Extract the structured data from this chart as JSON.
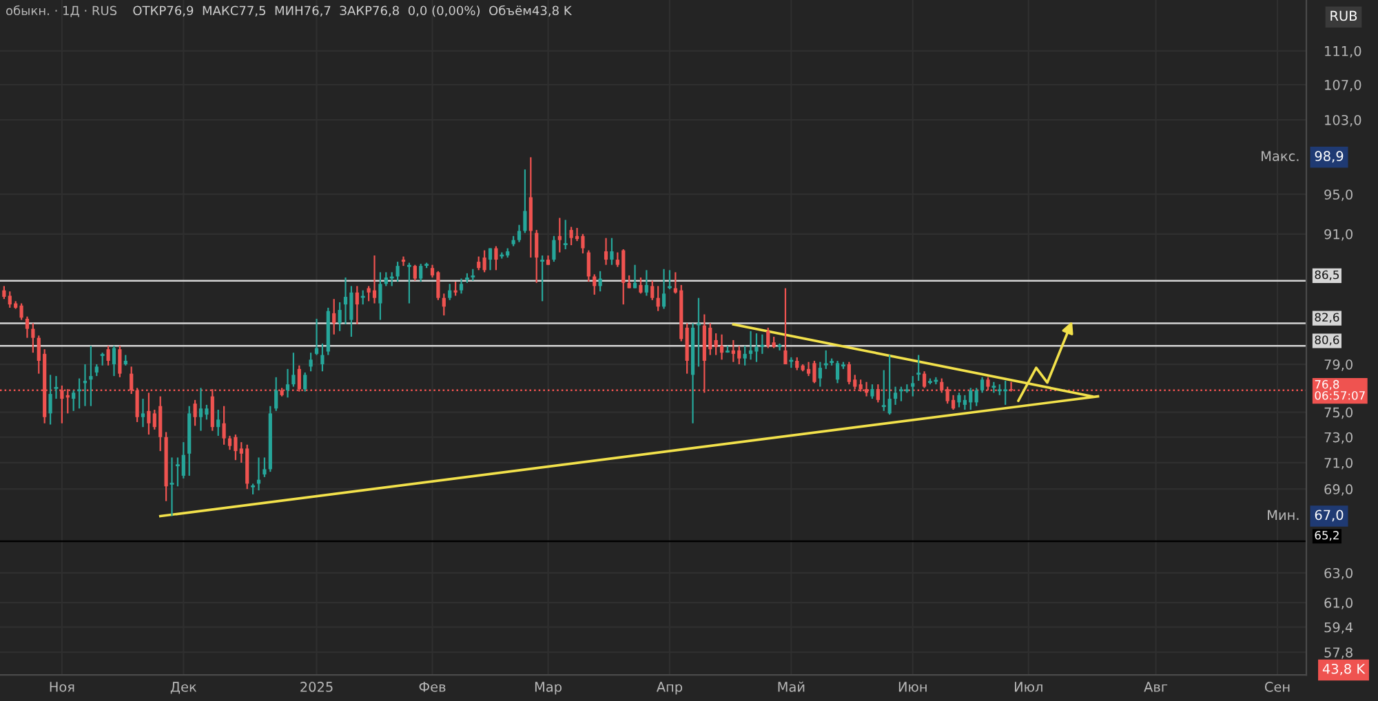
{
  "chart_data": {
    "type": "candlestick",
    "title": "обыкн. · 1Д · RUS",
    "subtitle": "ОТКР76,9  МАКС77,5  МИН76,7  ЗАКР76,8  0,0 (0,00%)  Объём43,8 K",
    "categories": [
      null,
      null,
      null,
      null,
      null,
      null,
      null,
      null,
      null,
      null,
      "Ноя",
      null,
      null,
      null,
      null,
      null,
      null,
      null,
      null,
      null,
      null,
      null,
      null,
      null,
      null,
      null,
      null,
      null,
      null,
      null,
      null,
      "Дек",
      null,
      null,
      null,
      null,
      null,
      null,
      null,
      null,
      null,
      null,
      null,
      null,
      null,
      null,
      null,
      null,
      null,
      null,
      null,
      null,
      null,
      null,
      "2025",
      null,
      null,
      null,
      null,
      null,
      null,
      null,
      null,
      null,
      null,
      null,
      null,
      null,
      null,
      null,
      null,
      null,
      null,
      null,
      "Фев",
      null,
      null,
      null,
      null,
      null,
      null,
      null,
      null,
      null,
      null,
      null,
      null,
      null,
      null,
      null,
      null,
      null,
      null,
      null,
      "Мар",
      null,
      null,
      null,
      null,
      null,
      null,
      null,
      null,
      null,
      null,
      null,
      null,
      null,
      null,
      null,
      null,
      null,
      null,
      null,
      null,
      "Апр",
      null,
      null,
      null,
      null,
      null,
      null,
      null,
      null,
      null,
      null,
      null,
      null,
      null,
      null,
      null,
      null,
      null,
      null,
      null,
      null,
      "Май",
      null,
      null,
      null,
      null,
      null,
      null,
      null,
      null,
      null,
      null,
      null,
      null,
      null,
      null,
      null,
      null,
      null,
      null,
      null,
      null,
      "Июн",
      null,
      null,
      null,
      null,
      null,
      null,
      null,
      null,
      null,
      null,
      null,
      null,
      null,
      null,
      null,
      null,
      null,
      null,
      null,
      "Июл",
      null,
      null,
      null,
      null,
      null,
      null,
      null,
      null,
      null,
      null,
      null,
      null,
      null,
      null,
      null,
      null,
      null,
      null,
      null,
      null,
      null,
      "Авг",
      null,
      null,
      null,
      null,
      null,
      null,
      null,
      null,
      null,
      null,
      null,
      null,
      null,
      null,
      null,
      null,
      null,
      null,
      null,
      null,
      "Сен",
      null,
      null,
      null,
      null,
      null
    ],
    "series": [
      {
        "type": "line",
        "color": "#f2e14b",
        "values": [
          null,
          null,
          null,
          null,
          null,
          null,
          null,
          null,
          null,
          null,
          null,
          null,
          null,
          null,
          null,
          null,
          null,
          null,
          null,
          null,
          null,
          null,
          null,
          null,
          null,
          null,
          null,
          67.0,
          null,
          null,
          null,
          null,
          null,
          null,
          null,
          null,
          null,
          null,
          null,
          null,
          null,
          null,
          null,
          null,
          null,
          null,
          null,
          null,
          null,
          null,
          null,
          null,
          null,
          null,
          null,
          null,
          null,
          null,
          null,
          null,
          null,
          null,
          null,
          null,
          null,
          null,
          null,
          null,
          null,
          null,
          null,
          null,
          null,
          null,
          null,
          null,
          null,
          null,
          null,
          null,
          null,
          null,
          null,
          null,
          null,
          null,
          null,
          null,
          null,
          null,
          null,
          null,
          null,
          null,
          null,
          null,
          null,
          null,
          null,
          null,
          null,
          null,
          null,
          null,
          null,
          null,
          null,
          null,
          null,
          null,
          null,
          null,
          null,
          null,
          null,
          null,
          null,
          null,
          null,
          null,
          null,
          null,
          null,
          null,
          null,
          null,
          null,
          null,
          null,
          null,
          null,
          null,
          null,
          null,
          null,
          null,
          null,
          null,
          null,
          null,
          null,
          null,
          null,
          null,
          null,
          null,
          null,
          null,
          null,
          null,
          null,
          null,
          null,
          null,
          null,
          null,
          null,
          null,
          null,
          null,
          null,
          null,
          null,
          null,
          null,
          null,
          null,
          null,
          null,
          null,
          null,
          null,
          null,
          null,
          null,
          null,
          null,
          null,
          null,
          null,
          null,
          null,
          null,
          null,
          null,
          null,
          null,
          null,
          null,
          76.3,
          null,
          null,
          null,
          null,
          null,
          null,
          null,
          null,
          null,
          null,
          null,
          null,
          null,
          null,
          null,
          null,
          null,
          null,
          null,
          null,
          null,
          null,
          null,
          null,
          null,
          null,
          null,
          null,
          null,
          null,
          null,
          null,
          null,
          null,
          null,
          null
        ]
      },
      {
        "type": "line",
        "color": "#f2e14b",
        "values": [
          null,
          null,
          null,
          null,
          null,
          null,
          null,
          null,
          null,
          null,
          null,
          null,
          null,
          null,
          null,
          null,
          null,
          null,
          null,
          null,
          null,
          null,
          null,
          null,
          null,
          null,
          null,
          null,
          null,
          null,
          null,
          null,
          null,
          null,
          null,
          null,
          null,
          null,
          null,
          null,
          null,
          null,
          null,
          null,
          null,
          null,
          null,
          null,
          null,
          null,
          null,
          null,
          null,
          null,
          null,
          null,
          null,
          null,
          null,
          null,
          null,
          null,
          null,
          null,
          null,
          null,
          null,
          null,
          null,
          null,
          null,
          null,
          null,
          null,
          null,
          null,
          null,
          null,
          null,
          null,
          null,
          null,
          null,
          null,
          null,
          null,
          null,
          null,
          null,
          null,
          null,
          null,
          null,
          null,
          null,
          null,
          null,
          null,
          null,
          null,
          null,
          null,
          null,
          null,
          null,
          null,
          null,
          null,
          null,
          null,
          null,
          null,
          null,
          null,
          null,
          null,
          null,
          null,
          null,
          null,
          null,
          null,
          null,
          null,
          null,
          null,
          82.5,
          null,
          null,
          null,
          null,
          null,
          null,
          null,
          null,
          null,
          null,
          null,
          null,
          null,
          null,
          null,
          null,
          null,
          null,
          null,
          null,
          null,
          null,
          null,
          null,
          null,
          null,
          null,
          null,
          null,
          null,
          null,
          null,
          null,
          null,
          null,
          null,
          null,
          null,
          null,
          null,
          null,
          null,
          null,
          null,
          null,
          null,
          null,
          null,
          null,
          null,
          null,
          null,
          null,
          null,
          null,
          null,
          null,
          null,
          null,
          null,
          null,
          76.3,
          null,
          null,
          null,
          null,
          null,
          null,
          null,
          null,
          null,
          null,
          null,
          null,
          null,
          null,
          null,
          null,
          null,
          null,
          null,
          null,
          null,
          null,
          null,
          null,
          null,
          null,
          null,
          null,
          null,
          null,
          null,
          null,
          null,
          null,
          null,
          null,
          null
        ]
      },
      {
        "colors": [
          "#ef5350",
          "#ef5350",
          "#ef5350",
          "#ef5350",
          "#ef5350",
          "#ef5350",
          "#ef5350",
          "#ef5350",
          "#26a69a",
          "#26a69a",
          "#ef5350",
          "#ef5350",
          "#26a69a",
          "#26a69a",
          "#26a69a",
          "#26a69a",
          "#26a69a",
          "#26a69a",
          "#ef5350",
          "#26a69a",
          "#ef5350",
          "#26a69a",
          "#ef5350",
          "#ef5350",
          "#26a69a",
          "#ef5350",
          "#ef5350",
          "#ef5350",
          "#ef5350",
          "#26a69a",
          "#26a69a",
          "#26a69a",
          "#26a69a",
          "#ef5350",
          "#26a69a",
          "#26a69a",
          "#ef5350",
          "#26a69a",
          "#ef5350",
          "#ef5350",
          "#ef5350",
          "#ef5350",
          "#ef5350",
          "#26a69a",
          "#26a69a",
          "#26a69a",
          "#26a69a",
          "#26a69a",
          "#ef5350",
          "#26a69a",
          "#26a69a",
          "#ef5350",
          "#26a69a",
          "#26a69a",
          "#26a69a",
          "#26a69a",
          "#26a69a",
          "#ef5350",
          "#26a69a",
          "#26a69a",
          "#26a69a",
          "#ef5350",
          "#26a69a",
          "#ef5350",
          "#ef5350",
          "#26a69a",
          "#26a69a",
          "#26a69a",
          "#26a69a",
          "#ef5350",
          "#26a69a",
          "#ef5350",
          "#26a69a",
          "#26a69a",
          "#ef5350",
          "#ef5350",
          "#ef5350",
          "#26a69a",
          "#ef5350",
          "#26a69a",
          "#26a69a",
          "#26a69a",
          "#ef5350",
          "#ef5350",
          "#26a69a",
          "#ef5350",
          "#26a69a",
          "#26a69a",
          "#26a69a",
          "#26a69a",
          "#26a69a",
          "#ef5350",
          "#ef5350",
          "#26a69a",
          "#ef5350",
          "#26a69a",
          "#ef5350",
          "#26a69a",
          "#ef5350",
          "#ef5350",
          "#ef5350",
          "#ef5350",
          "#ef5350",
          "#26a69a",
          "#ef5350",
          "#26a69a",
          "#ef5350",
          "#ef5350",
          "#ef5350",
          "#26a69a",
          "#ef5350",
          "#26a69a",
          "#ef5350",
          "#ef5350",
          "#26a69a",
          "#26a69a",
          "#ef5350",
          "#ef5350",
          "#ef5350",
          "#26a69a",
          "#26a69a",
          "#ef5350",
          "#ef5350",
          "#ef5350",
          "#ef5350",
          "#26a69a",
          "#ef5350",
          "#ef5350",
          "#26a69a",
          "#26a69a",
          "#26a69a",
          "#26a69a",
          "#ef5350",
          "#ef5350",
          "#26a69a",
          "#ef5350",
          "#26a69a",
          "#ef5350",
          "#ef5350",
          "#ef5350",
          "#ef5350",
          "#26a69a",
          "#26a69a",
          "#26a69a",
          "#26a69a",
          "#26a69a",
          "#ef5350",
          "#ef5350",
          "#ef5350",
          "#ef5350",
          "#26a69a",
          "#ef5350",
          "#26a69a",
          "#26a69a",
          "#26a69a",
          "#26a69a",
          "#26a69a",
          "#26a69a",
          "#26a69a",
          "#ef5350",
          "#26a69a",
          "#26a69a",
          "#ef5350",
          "#ef5350",
          "#ef5350",
          "#26a69a",
          "#26a69a",
          "#26a69a",
          "#26a69a",
          "#26a69a",
          "#ef5350",
          "#26a69a",
          "#26a69a",
          "#26a69a",
          "#ef5350",
          null,
          null,
          null,
          null,
          null,
          null,
          null,
          null,
          null,
          null,
          null,
          null,
          null,
          null,
          null,
          null,
          null,
          null,
          null,
          null,
          null,
          null,
          null,
          null,
          null,
          null,
          null,
          null,
          null,
          null,
          null,
          null,
          null,
          null,
          null,
          null,
          null,
          null,
          null,
          null,
          null,
          null,
          null,
          null,
          null,
          null,
          null,
          null,
          null,
          null,
          null
        ],
        "ohlc": [
          [
            85.6,
            86.0,
            84.8,
            85.0
          ],
          [
            85.1,
            85.5,
            84.0,
            84.3
          ],
          [
            84.4,
            84.6,
            83.9,
            84.0
          ],
          [
            84.2,
            84.4,
            82.9,
            83.1
          ],
          [
            83.0,
            83.2,
            81.3,
            82.1
          ],
          [
            82.1,
            82.6,
            80.0,
            81.3
          ],
          [
            81.3,
            81.5,
            78.2,
            79.3
          ],
          [
            79.9,
            80.3,
            74.1,
            74.6
          ],
          [
            74.9,
            78.1,
            74.0,
            76.5
          ],
          [
            77.0,
            78.0,
            76.1,
            77.0
          ],
          [
            76.8,
            77.2,
            74.1,
            76.1
          ],
          [
            76.4,
            76.9,
            74.9,
            76.2
          ],
          [
            76.1,
            76.8,
            75.1,
            76.6
          ],
          [
            76.8,
            77.8,
            75.3,
            76.8
          ],
          [
            77.4,
            79.0,
            75.5,
            77.6
          ],
          [
            77.7,
            80.6,
            75.5,
            78.0
          ],
          [
            78.3,
            79.0,
            78.0,
            78.8
          ],
          [
            79.8,
            80.0,
            78.9,
            79.8
          ],
          [
            80.3,
            80.6,
            78.9,
            79.3
          ],
          [
            79.0,
            80.6,
            78.0,
            80.4
          ],
          [
            80.3,
            80.6,
            77.9,
            78.2
          ],
          [
            79.0,
            79.8,
            78.9,
            79.3
          ],
          [
            78.2,
            78.8,
            76.5,
            76.8
          ],
          [
            76.8,
            77.0,
            74.2,
            74.6
          ],
          [
            74.6,
            76.1,
            73.8,
            74.9
          ],
          [
            75.1,
            76.6,
            73.2,
            74.1
          ],
          [
            74.9,
            75.2,
            73.6,
            73.8
          ],
          [
            75.5,
            76.3,
            71.9,
            73.0
          ],
          [
            73.0,
            73.4,
            68.1,
            69.2
          ],
          [
            69.4,
            71.4,
            67.0,
            69.4
          ],
          [
            70.8,
            71.4,
            69.2,
            70.8
          ],
          [
            70.0,
            72.6,
            69.8,
            71.6
          ],
          [
            71.7,
            75.5,
            70.0,
            74.9
          ],
          [
            75.7,
            76.0,
            73.9,
            74.6
          ],
          [
            74.6,
            77.0,
            73.5,
            75.3
          ],
          [
            74.8,
            75.6,
            74.4,
            75.3
          ],
          [
            76.3,
            76.9,
            73.5,
            73.8
          ],
          [
            73.8,
            75.2,
            73.1,
            74.4
          ],
          [
            74.1,
            75.5,
            72.4,
            72.9
          ],
          [
            72.9,
            73.1,
            72.0,
            72.3
          ],
          [
            73.0,
            73.2,
            71.2,
            71.9
          ],
          [
            72.1,
            72.6,
            71.0,
            71.7
          ],
          [
            72.1,
            72.4,
            69.0,
            69.4
          ],
          [
            69.2,
            69.4,
            68.6,
            69.2
          ],
          [
            69.4,
            71.4,
            68.9,
            69.7
          ],
          [
            70.1,
            71.4,
            69.9,
            70.5
          ],
          [
            70.5,
            75.5,
            70.3,
            74.9
          ],
          [
            75.3,
            77.9,
            75.1,
            76.8
          ],
          [
            76.8,
            77.0,
            76.3,
            76.4
          ],
          [
            76.8,
            78.6,
            76.2,
            77.3
          ],
          [
            77.3,
            80.0,
            77.1,
            78.1
          ],
          [
            78.6,
            78.9,
            76.7,
            76.9
          ],
          [
            76.9,
            78.3,
            76.7,
            78.1
          ],
          [
            78.8,
            80.0,
            78.4,
            79.4
          ],
          [
            79.9,
            83.0,
            79.8,
            80.4
          ],
          [
            79.0,
            80.8,
            78.4,
            79.8
          ],
          [
            80.1,
            84.0,
            79.8,
            83.7
          ],
          [
            83.5,
            84.8,
            81.6,
            82.6
          ],
          [
            82.6,
            84.5,
            81.9,
            83.8
          ],
          [
            84.3,
            86.8,
            82.5,
            85.0
          ],
          [
            82.9,
            86.0,
            81.4,
            85.4
          ],
          [
            85.4,
            86.0,
            82.5,
            84.3
          ],
          [
            85.0,
            85.6,
            84.3,
            85.0
          ],
          [
            85.8,
            86.0,
            84.6,
            85.4
          ],
          [
            85.6,
            88.9,
            84.4,
            84.9
          ],
          [
            84.4,
            87.3,
            82.9,
            86.2
          ],
          [
            86.2,
            87.3,
            86.0,
            86.8
          ],
          [
            86.8,
            87.3,
            86.0,
            86.8
          ],
          [
            86.9,
            88.3,
            86.4,
            87.9
          ],
          [
            88.5,
            88.8,
            87.9,
            88.3
          ],
          [
            87.9,
            88.2,
            84.4,
            87.9
          ],
          [
            87.9,
            88.0,
            86.5,
            86.7
          ],
          [
            86.7,
            88.1,
            86.4,
            87.9
          ],
          [
            88.0,
            88.2,
            87.7,
            88.0
          ],
          [
            87.7,
            88.0,
            86.8,
            87.0
          ],
          [
            87.3,
            87.4,
            84.7,
            84.9
          ],
          [
            84.9,
            85.3,
            83.3,
            84.1
          ],
          [
            84.9,
            86.2,
            84.7,
            85.6
          ],
          [
            85.6,
            86.4,
            85.1,
            85.4
          ],
          [
            85.6,
            86.7,
            85.3,
            86.2
          ],
          [
            86.7,
            87.2,
            86.3,
            86.7
          ],
          [
            86.9,
            87.6,
            86.5,
            86.9
          ],
          [
            88.3,
            88.8,
            87.5,
            87.7
          ],
          [
            88.7,
            89.4,
            87.3,
            87.5
          ],
          [
            88.5,
            89.6,
            87.5,
            89.6
          ],
          [
            89.6,
            89.8,
            87.5,
            88.5
          ],
          [
            88.9,
            89.2,
            88.6,
            88.9
          ],
          [
            88.9,
            89.6,
            88.7,
            89.3
          ],
          [
            90.0,
            90.8,
            89.8,
            90.4
          ],
          [
            90.4,
            91.9,
            90.2,
            91.3
          ],
          [
            91.3,
            97.6,
            91.1,
            93.3
          ],
          [
            94.7,
            98.9,
            88.7,
            91.3
          ],
          [
            91.1,
            91.4,
            86.3,
            88.7
          ],
          [
            88.4,
            88.9,
            84.6,
            88.4
          ],
          [
            88.5,
            88.9,
            88.0,
            88.0
          ],
          [
            88.5,
            90.8,
            88.3,
            90.4
          ],
          [
            90.8,
            92.6,
            89.2,
            90.4
          ],
          [
            90.0,
            92.4,
            89.5,
            90.0
          ],
          [
            91.4,
            91.7,
            89.9,
            90.6
          ],
          [
            90.8,
            91.6,
            90.3,
            90.5
          ],
          [
            90.8,
            91.0,
            89.1,
            89.6
          ],
          [
            89.2,
            89.4,
            86.4,
            86.9
          ],
          [
            86.9,
            87.1,
            85.2,
            86.0
          ],
          [
            86.0,
            87.4,
            85.5,
            86.7
          ],
          [
            89.3,
            90.6,
            88.0,
            88.5
          ],
          [
            88.5,
            90.6,
            88.0,
            89.3
          ],
          [
            88.5,
            89.2,
            87.8,
            88.0
          ],
          [
            89.4,
            89.5,
            84.3,
            86.3
          ],
          [
            86.3,
            87.0,
            85.8,
            85.8
          ],
          [
            85.8,
            88.0,
            85.8,
            86.3
          ],
          [
            86.1,
            86.8,
            85.3,
            85.4
          ],
          [
            85.4,
            87.5,
            85.1,
            86.1
          ],
          [
            86.0,
            86.5,
            84.7,
            84.9
          ],
          [
            84.9,
            86.0,
            83.7,
            84.1
          ],
          [
            84.1,
            87.6,
            83.9,
            85.3
          ],
          [
            85.9,
            87.5,
            85.7,
            85.9
          ],
          [
            85.8,
            87.3,
            85.3,
            85.4
          ],
          [
            85.6,
            86.1,
            81.0,
            81.2
          ],
          [
            82.2,
            82.6,
            78.2,
            79.3
          ],
          [
            78.1,
            82.6,
            74.1,
            82.2
          ],
          [
            82.5,
            84.9,
            78.8,
            82.5
          ],
          [
            82.4,
            83.4,
            76.6,
            79.3
          ],
          [
            82.2,
            82.6,
            79.8,
            80.3
          ],
          [
            81.1,
            81.7,
            79.8,
            80.5
          ],
          [
            80.6,
            81.6,
            79.4,
            80.0
          ],
          [
            80.1,
            80.6,
            80.0,
            80.1
          ],
          [
            80.2,
            81.1,
            79.2,
            79.9
          ],
          [
            80.2,
            80.6,
            79.0,
            79.5
          ],
          [
            79.5,
            80.6,
            78.9,
            79.9
          ],
          [
            79.9,
            81.9,
            79.4,
            80.2
          ],
          [
            80.1,
            81.7,
            79.2,
            80.5
          ],
          [
            80.6,
            81.6,
            79.9,
            80.6
          ],
          [
            81.9,
            82.2,
            80.4,
            80.6
          ],
          [
            80.9,
            81.4,
            80.4,
            80.5
          ],
          [
            80.6,
            80.8,
            80.2,
            80.6
          ],
          [
            80.2,
            85.8,
            79.0,
            79.0
          ],
          [
            79.3,
            79.6,
            78.7,
            79.3
          ],
          [
            79.3,
            79.6,
            78.5,
            78.7
          ],
          [
            78.9,
            79.0,
            78.4,
            78.5
          ],
          [
            78.6,
            79.2,
            78.0,
            78.2
          ],
          [
            79.1,
            79.3,
            77.4,
            77.5
          ],
          [
            77.8,
            79.2,
            77.1,
            78.7
          ],
          [
            79.0,
            80.2,
            78.6,
            79.0
          ],
          [
            79.2,
            79.5,
            78.9,
            79.2
          ],
          [
            77.7,
            79.3,
            77.4,
            79.1
          ],
          [
            78.9,
            79.2,
            78.6,
            78.9
          ],
          [
            79.0,
            79.2,
            77.3,
            77.5
          ],
          [
            77.7,
            78.1,
            76.9,
            77.1
          ],
          [
            77.3,
            77.7,
            76.7,
            76.9
          ],
          [
            76.9,
            77.5,
            76.3,
            76.6
          ],
          [
            76.3,
            77.3,
            76.1,
            76.9
          ],
          [
            76.9,
            77.3,
            75.8,
            76.0
          ],
          [
            75.5,
            78.5,
            75.1,
            75.5
          ],
          [
            74.9,
            79.8,
            74.8,
            76.1
          ],
          [
            76.1,
            77.1,
            75.6,
            76.6
          ],
          [
            76.8,
            77.1,
            75.9,
            76.8
          ],
          [
            76.8,
            77.3,
            76.6,
            76.8
          ],
          [
            77.1,
            78.0,
            76.3,
            77.4
          ],
          [
            78.2,
            79.8,
            77.6,
            78.2
          ],
          [
            78.2,
            78.4,
            77.0,
            77.1
          ],
          [
            77.5,
            77.8,
            77.3,
            77.5
          ],
          [
            77.6,
            77.9,
            77.3,
            77.6
          ],
          [
            77.5,
            77.8,
            76.6,
            76.8
          ],
          [
            76.9,
            77.1,
            75.7,
            75.9
          ],
          [
            76.0,
            76.4,
            75.2,
            75.3
          ],
          [
            75.8,
            76.6,
            75.4,
            76.4
          ],
          [
            75.6,
            76.4,
            75.2,
            76.0
          ],
          [
            75.8,
            77.0,
            75.2,
            76.8
          ],
          [
            75.8,
            77.0,
            75.5,
            76.8
          ],
          [
            76.8,
            77.9,
            76.6,
            77.7
          ],
          [
            77.7,
            77.9,
            76.8,
            77.1
          ],
          [
            77.1,
            77.5,
            76.6,
            77.1
          ],
          [
            76.8,
            77.3,
            76.4,
            76.8
          ],
          [
            76.8,
            77.6,
            75.6,
            76.8
          ],
          [
            76.9,
            77.5,
            76.7,
            76.8
          ],
          null,
          null,
          null,
          null,
          null,
          null,
          null,
          null,
          null,
          null,
          null,
          null,
          null,
          null,
          null,
          null,
          null,
          null,
          null,
          null,
          null,
          null,
          null,
          null,
          null,
          null,
          null,
          null,
          null,
          null,
          null,
          null,
          null,
          null,
          null,
          null,
          null,
          null,
          null,
          null,
          null,
          null,
          null,
          null,
          null,
          null,
          null,
          null,
          null,
          null,
          null
        ]
      }
    ],
    "log": true,
    "ylim": [
      56.4,
      117.3
    ],
    "yticks": [
      {
        "value": 57.8,
        "label": "57,8"
      },
      {
        "value": 59.4,
        "label": "59,4"
      },
      {
        "value": 61,
        "label": "61,0"
      },
      {
        "value": 63,
        "label": "63,0"
      },
      {
        "value": 69,
        "label": "69,0"
      },
      {
        "value": 71,
        "label": "71,0"
      },
      {
        "value": 73,
        "label": "73,0"
      },
      {
        "value": 75,
        "label": "75,0"
      },
      {
        "value": 79,
        "label": "79,0"
      },
      {
        "value": 91,
        "label": "91,0"
      },
      {
        "value": 95,
        "label": "95,0"
      },
      {
        "value": 103,
        "label": "103,0"
      },
      {
        "value": 107,
        "label": "107,0"
      },
      {
        "value": 111,
        "label": "111,0"
      }
    ],
    "grid": true,
    "ref_lines": [
      {
        "axis": "y",
        "value": 86.5,
        "label": "86,5",
        "color": "#d6d6d6",
        "line_style": "solid"
      },
      {
        "axis": "y",
        "value": 82.6,
        "label": "82,6",
        "color": "#d6d6d6",
        "line_style": "solid"
      },
      {
        "axis": "y",
        "value": 80.6,
        "label": "80,6",
        "color": "#d6d6d6",
        "line_style": "solid"
      },
      {
        "axis": "y",
        "value": 76.8,
        "label": "76,8\n06:57:07",
        "color": "#ef5350",
        "line_style": "dotted"
      },
      {
        "axis": "y",
        "value": 65.2,
        "label": "65,2",
        "color": "#000000",
        "line_style": "solid"
      }
    ],
    "annotations": [
      "RUB",
      "43,8 K",
      "Макс.",
      {
        "text": "98,9",
        "y": 98.9
      },
      "Мин.",
      {
        "text": "67,0",
        "y": 67.0
      }
    ]
  }
}
